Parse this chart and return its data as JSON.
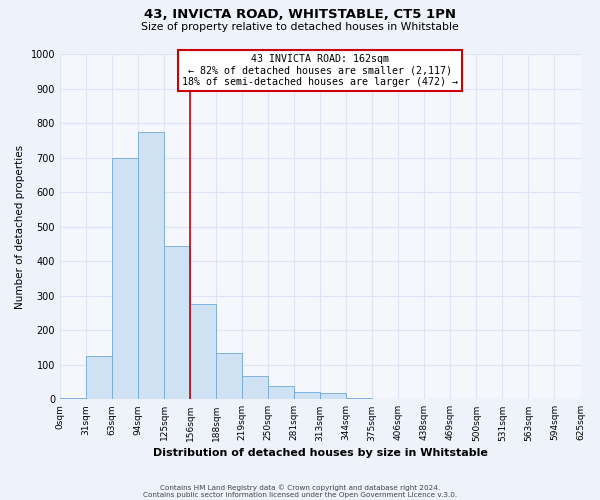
{
  "title": "43, INVICTA ROAD, WHITSTABLE, CT5 1PN",
  "subtitle": "Size of property relative to detached houses in Whitstable",
  "xlabel": "Distribution of detached houses by size in Whitstable",
  "ylabel": "Number of detached properties",
  "bin_labels": [
    "0sqm",
    "31sqm",
    "63sqm",
    "94sqm",
    "125sqm",
    "156sqm",
    "188sqm",
    "219sqm",
    "250sqm",
    "281sqm",
    "313sqm",
    "344sqm",
    "375sqm",
    "406sqm",
    "438sqm",
    "469sqm",
    "500sqm",
    "531sqm",
    "563sqm",
    "594sqm",
    "625sqm"
  ],
  "bar_heights": [
    5,
    125,
    700,
    775,
    445,
    275,
    135,
    68,
    40,
    22,
    18,
    5,
    2,
    0,
    0,
    0,
    0,
    0,
    0,
    0
  ],
  "bar_color": "#cfe2f3",
  "bar_edge_color": "#6fa8dc",
  "vline_x": 5.0,
  "vline_color": "#cc0000",
  "annotation_title": "43 INVICTA ROAD: 162sqm",
  "annotation_line1": "← 82% of detached houses are smaller (2,117)",
  "annotation_line2": "18% of semi-detached houses are larger (472) →",
  "annotation_box_color": "#cc0000",
  "ylim": [
    0,
    1000
  ],
  "yticks": [
    0,
    100,
    200,
    300,
    400,
    500,
    600,
    700,
    800,
    900,
    1000
  ],
  "footer_line1": "Contains HM Land Registry data © Crown copyright and database right 2024.",
  "footer_line2": "Contains public sector information licensed under the Open Government Licence v.3.0.",
  "bg_color": "#eef2fb",
  "plot_bg_color": "#f5f7fd",
  "grid_color": "#dce4f5"
}
